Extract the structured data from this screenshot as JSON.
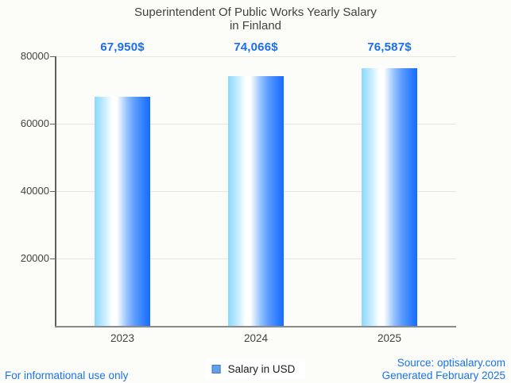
{
  "title": {
    "line1": "Superintendent Of Public Works Yearly Salary",
    "line2": "in Finland"
  },
  "legend": {
    "label": "Salary in USD",
    "marker_fill": "#62a0e8",
    "marker_border": "#3d76c4"
  },
  "footer": {
    "left": "For informational use only",
    "source": "Source: optisalary.com",
    "generated": "Generated February 2025"
  },
  "colors": {
    "background": "#fcfcf9",
    "title_text": "#424242",
    "axis_text": "#424242",
    "value_label_text": "#1b6ef0",
    "footer_text": "#1a73e8",
    "gridline": "#e6e6e6",
    "axis_line": "#8a8a8a",
    "bar_gradient": "linear-gradient(90deg, #8ad9ff 0%, #b9e8ff 14%, #ffffff 32%, #ffffff 40%, #96c3ff 58%, #5e9dff 72%, #3583ff 86%, #176afd 100%)"
  },
  "chart_data": {
    "type": "bar",
    "title": "Superintendent Of Public Works Yearly Salary in Finland",
    "categories": [
      "2023",
      "2024",
      "2025"
    ],
    "series": [
      {
        "name": "Salary in USD",
        "values": [
          67950,
          74066,
          76587
        ]
      }
    ],
    "value_labels": [
      "67,950$",
      "74,066$",
      "76,587$"
    ],
    "xlabel": "",
    "ylabel": "",
    "ylim": [
      0,
      80000
    ],
    "y_ticks": [
      20000,
      40000,
      60000,
      80000
    ],
    "grid": true,
    "legend_position": "bottom"
  }
}
